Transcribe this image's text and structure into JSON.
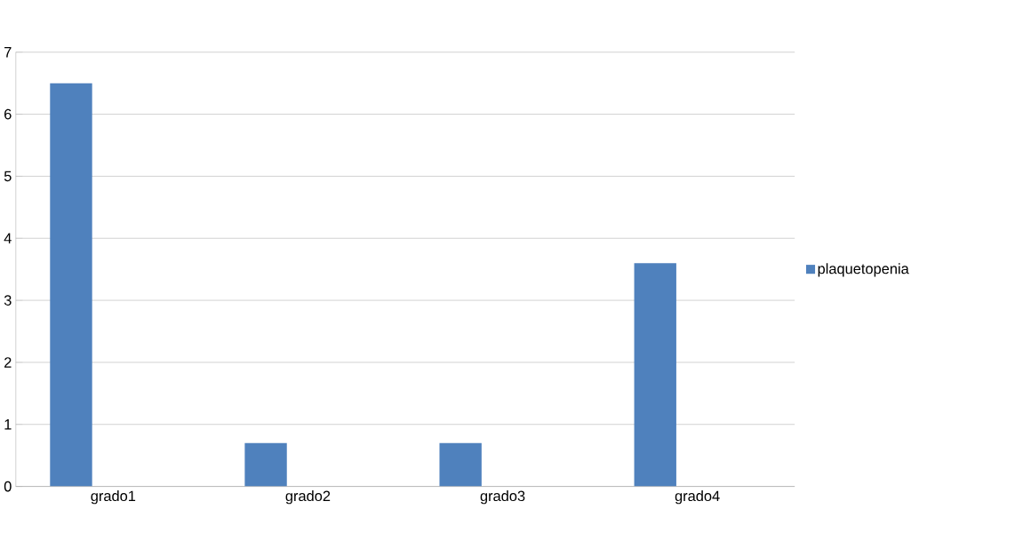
{
  "chart_data": {
    "type": "bar",
    "categories": [
      "grado1",
      "grado2",
      "grado3",
      "grado4"
    ],
    "series": [
      {
        "name": "plaquetopenia",
        "color": "#4f81bd",
        "values": [
          6.5,
          0.7,
          0.7,
          3.6
        ]
      }
    ],
    "ylim": [
      0,
      7
    ],
    "yticks": [
      0,
      1,
      2,
      3,
      4,
      5,
      6,
      7
    ],
    "grid": "y",
    "legend": "right"
  }
}
